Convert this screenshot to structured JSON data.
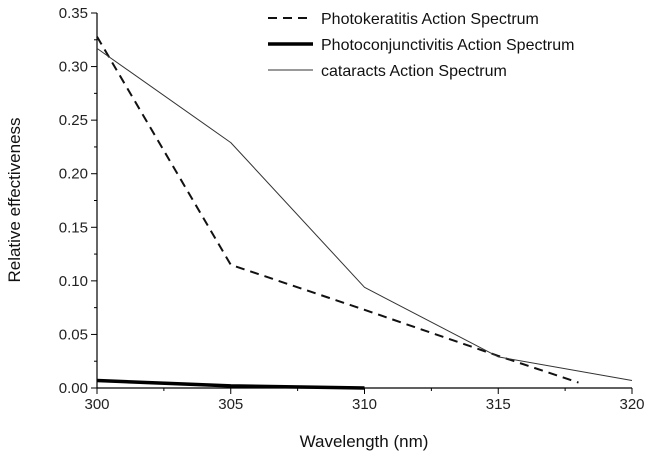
{
  "chart_data": {
    "type": "line",
    "title": "",
    "xlabel": "Wavelength (nm)",
    "ylabel": "Relative effectiveness",
    "xlim": [
      300,
      320
    ],
    "ylim": [
      0,
      0.35
    ],
    "x_ticks": [
      300,
      305,
      310,
      315,
      320
    ],
    "x_tick_labels": [
      "300",
      "305",
      "310",
      "315",
      "320"
    ],
    "y_ticks": [
      0,
      0.05,
      0.1,
      0.15,
      0.2,
      0.25,
      0.3,
      0.35
    ],
    "y_tick_labels": [
      "0.00",
      "0.05",
      "0.10",
      "0.15",
      "0.20",
      "0.25",
      "0.30",
      "0.35"
    ],
    "grid": false,
    "legend_position": "top-right",
    "series": [
      {
        "name": "Photokeratitis Action Spectrum",
        "style": "dashed",
        "color": "#111111",
        "x": [
          300,
          305,
          310,
          315,
          318
        ],
        "y": [
          0.328,
          0.115,
          0.073,
          0.03,
          0.005
        ]
      },
      {
        "name": "Photoconjunctivitis Action Spectrum",
        "style": "thick",
        "color": "#000000",
        "x": [
          300,
          305,
          310
        ],
        "y": [
          0.007,
          0.002,
          0.0
        ]
      },
      {
        "name": "cataracts Action Spectrum",
        "style": "thin",
        "color": "#333333",
        "x": [
          300,
          305,
          310,
          315,
          320
        ],
        "y": [
          0.317,
          0.229,
          0.094,
          0.029,
          0.007
        ]
      }
    ]
  }
}
